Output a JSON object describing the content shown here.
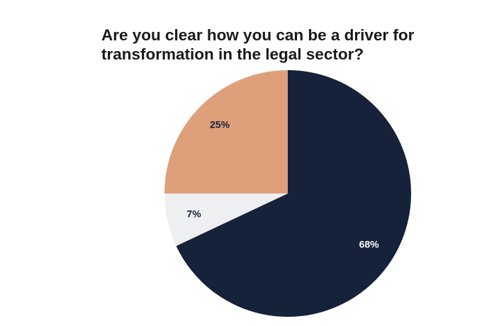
{
  "chart_data": {
    "type": "pie",
    "title": "Are you clear how you can be a driver for transformation in the legal sector?",
    "values": [
      68,
      7,
      25
    ],
    "value_labels": [
      "68%",
      "7%",
      "25%"
    ],
    "colors": [
      "#16213a",
      "#eeeff1",
      "#dda07a"
    ],
    "label_colors": [
      "#ffffff",
      "#16213a",
      "#16213a"
    ]
  }
}
